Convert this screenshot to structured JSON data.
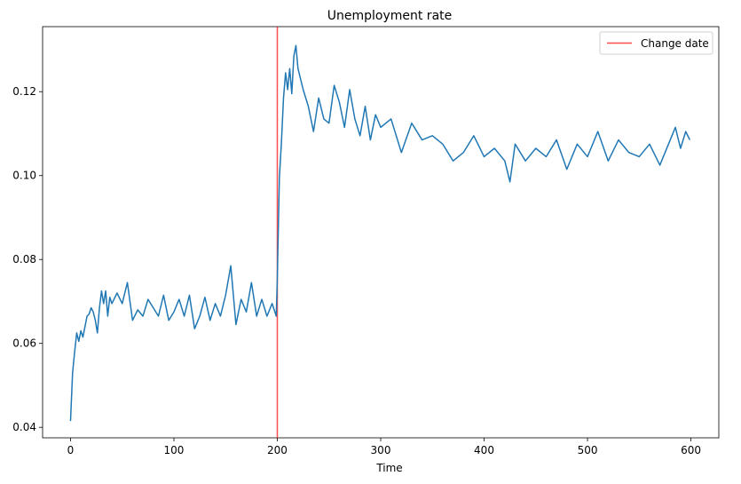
{
  "chart_data": {
    "type": "line",
    "title": "Unemployment rate",
    "xlabel": "Time",
    "ylabel": "",
    "xlim": [
      -27,
      627
    ],
    "ylim": [
      0.0375,
      0.1355
    ],
    "xticks": [
      0,
      100,
      200,
      300,
      400,
      500,
      600
    ],
    "yticks": [
      0.04,
      0.06,
      0.08,
      0.1,
      0.12
    ],
    "ytick_labels": [
      "0.04",
      "0.06",
      "0.08",
      "0.10",
      "0.12"
    ],
    "grid": false,
    "legend": {
      "placement": "top-right",
      "entries": [
        "Change date"
      ]
    },
    "colors": {
      "series": "#1f77b4",
      "change_line": "#ff0000"
    },
    "vline": {
      "name": "Change date",
      "x": 200
    },
    "series": [
      {
        "name": "",
        "x": [
          0,
          2,
          4,
          6,
          8,
          10,
          12,
          14,
          16,
          18,
          20,
          22,
          24,
          26,
          28,
          30,
          32,
          34,
          36,
          38,
          40,
          45,
          50,
          55,
          60,
          65,
          70,
          75,
          80,
          85,
          90,
          95,
          100,
          105,
          110,
          115,
          120,
          125,
          130,
          135,
          140,
          145,
          150,
          155,
          160,
          165,
          170,
          175,
          180,
          185,
          190,
          195,
          199,
          200,
          202,
          204,
          206,
          208,
          210,
          212,
          214,
          216,
          218,
          220,
          225,
          230,
          235,
          240,
          245,
          250,
          255,
          260,
          265,
          270,
          275,
          280,
          285,
          290,
          295,
          300,
          310,
          320,
          330,
          340,
          350,
          360,
          370,
          380,
          390,
          400,
          410,
          420,
          425,
          430,
          440,
          450,
          460,
          470,
          480,
          490,
          500,
          510,
          520,
          530,
          540,
          550,
          560,
          570,
          580,
          585,
          590,
          595,
          599
        ],
        "values": [
          0.0415,
          0.053,
          0.058,
          0.0625,
          0.0605,
          0.063,
          0.0615,
          0.064,
          0.0665,
          0.067,
          0.0685,
          0.0675,
          0.0655,
          0.0625,
          0.0685,
          0.0725,
          0.0695,
          0.0725,
          0.0665,
          0.071,
          0.0695,
          0.072,
          0.0695,
          0.0745,
          0.0655,
          0.068,
          0.0665,
          0.0705,
          0.0685,
          0.0665,
          0.0715,
          0.0655,
          0.0675,
          0.0705,
          0.0665,
          0.0715,
          0.0635,
          0.0665,
          0.071,
          0.0655,
          0.0695,
          0.0665,
          0.0715,
          0.0785,
          0.0645,
          0.0705,
          0.0675,
          0.0745,
          0.0665,
          0.0705,
          0.0665,
          0.0695,
          0.0665,
          0.0755,
          0.0995,
          0.108,
          0.1185,
          0.1245,
          0.1205,
          0.1255,
          0.1195,
          0.1285,
          0.131,
          0.1255,
          0.1205,
          0.1165,
          0.1105,
          0.1185,
          0.1135,
          0.1125,
          0.1215,
          0.1175,
          0.1115,
          0.1205,
          0.1135,
          0.1095,
          0.1165,
          0.1085,
          0.1145,
          0.1115,
          0.1135,
          0.1055,
          0.1125,
          0.1085,
          0.1095,
          0.1075,
          0.1035,
          0.1055,
          0.1095,
          0.1045,
          0.1065,
          0.1035,
          0.0985,
          0.1075,
          0.1035,
          0.1065,
          0.1045,
          0.1085,
          0.1015,
          0.1075,
          0.1045,
          0.1105,
          0.1035,
          0.1085,
          0.1055,
          0.1045,
          0.1075,
          0.1025,
          0.1085,
          0.1115,
          0.1065,
          0.1105,
          0.1085
        ]
      }
    ]
  }
}
